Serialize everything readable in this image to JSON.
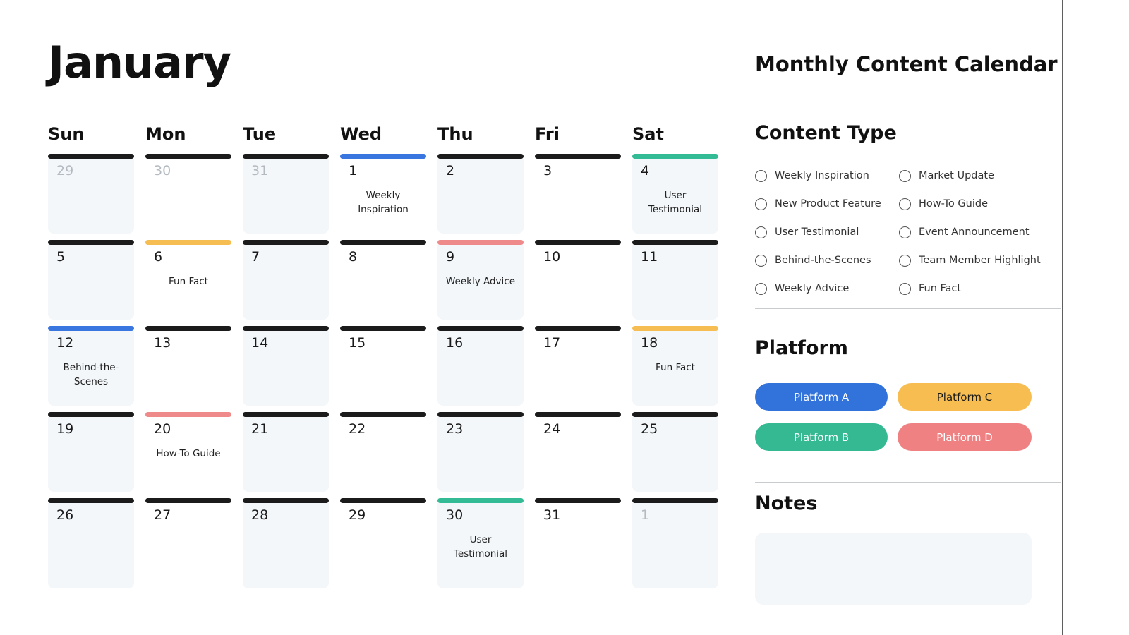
{
  "calendar": {
    "month": "January",
    "day_headers": [
      "Sun",
      "Mon",
      "Tue",
      "Wed",
      "Thu",
      "Fri",
      "Sat"
    ],
    "weeks": [
      [
        {
          "day": "29",
          "muted": true,
          "bar": "default",
          "event": ""
        },
        {
          "day": "30",
          "muted": true,
          "bar": "default",
          "event": ""
        },
        {
          "day": "31",
          "muted": true,
          "bar": "default",
          "event": ""
        },
        {
          "day": "1",
          "muted": false,
          "bar": "blue",
          "event": "Weekly Inspiration"
        },
        {
          "day": "2",
          "muted": false,
          "bar": "default",
          "event": ""
        },
        {
          "day": "3",
          "muted": false,
          "bar": "default",
          "event": ""
        },
        {
          "day": "4",
          "muted": false,
          "bar": "green",
          "event": "User Testimonial"
        }
      ],
      [
        {
          "day": "5",
          "muted": false,
          "bar": "default",
          "event": ""
        },
        {
          "day": "6",
          "muted": false,
          "bar": "yellow",
          "event": "Fun Fact"
        },
        {
          "day": "7",
          "muted": false,
          "bar": "default",
          "event": ""
        },
        {
          "day": "8",
          "muted": false,
          "bar": "default",
          "event": ""
        },
        {
          "day": "9",
          "muted": false,
          "bar": "red",
          "event": "Weekly Advice"
        },
        {
          "day": "10",
          "muted": false,
          "bar": "default",
          "event": ""
        },
        {
          "day": "11",
          "muted": false,
          "bar": "default",
          "event": ""
        }
      ],
      [
        {
          "day": "12",
          "muted": false,
          "bar": "blue",
          "event": "Behind-the-Scenes"
        },
        {
          "day": "13",
          "muted": false,
          "bar": "default",
          "event": ""
        },
        {
          "day": "14",
          "muted": false,
          "bar": "default",
          "event": ""
        },
        {
          "day": "15",
          "muted": false,
          "bar": "default",
          "event": ""
        },
        {
          "day": "16",
          "muted": false,
          "bar": "default",
          "event": ""
        },
        {
          "day": "17",
          "muted": false,
          "bar": "default",
          "event": ""
        },
        {
          "day": "18",
          "muted": false,
          "bar": "yellow",
          "event": "Fun Fact"
        }
      ],
      [
        {
          "day": "19",
          "muted": false,
          "bar": "default",
          "event": ""
        },
        {
          "day": "20",
          "muted": false,
          "bar": "red",
          "event": "How-To Guide"
        },
        {
          "day": "21",
          "muted": false,
          "bar": "default",
          "event": ""
        },
        {
          "day": "22",
          "muted": false,
          "bar": "default",
          "event": ""
        },
        {
          "day": "23",
          "muted": false,
          "bar": "default",
          "event": ""
        },
        {
          "day": "24",
          "muted": false,
          "bar": "default",
          "event": ""
        },
        {
          "day": "25",
          "muted": false,
          "bar": "default",
          "event": ""
        }
      ],
      [
        {
          "day": "26",
          "muted": false,
          "bar": "default",
          "event": ""
        },
        {
          "day": "27",
          "muted": false,
          "bar": "default",
          "event": ""
        },
        {
          "day": "28",
          "muted": false,
          "bar": "default",
          "event": ""
        },
        {
          "day": "29",
          "muted": false,
          "bar": "default",
          "event": ""
        },
        {
          "day": "30",
          "muted": false,
          "bar": "green",
          "event": "User Testimonial"
        },
        {
          "day": "31",
          "muted": false,
          "bar": "default",
          "event": ""
        },
        {
          "day": "1",
          "muted": true,
          "bar": "default",
          "event": ""
        }
      ]
    ]
  },
  "sidebar": {
    "title": "Monthly Content Calendar",
    "content_type": {
      "heading": "Content Type",
      "column1": [
        "Weekly Inspiration",
        "New Product Feature",
        "User Testimonial",
        "Behind-the-Scenes",
        "Weekly Advice"
      ],
      "column2": [
        "Market Update",
        "How-To Guide",
        "Event Announcement",
        "Team Member Highlight",
        "Fun Fact"
      ]
    },
    "platform": {
      "heading": "Platform",
      "items": [
        {
          "label": "Platform A",
          "color": "#3273DB",
          "text_color": "#FFFFFF"
        },
        {
          "label": "Platform C",
          "color": "#F7BD51",
          "text_color": "#1A1A1A"
        },
        {
          "label": "Platform B",
          "color": "#35B993",
          "text_color": "#FFFFFF"
        },
        {
          "label": "Platform D",
          "color": "#EF8183",
          "text_color": "#FFFFFF"
        }
      ]
    },
    "notes": {
      "heading": "Notes",
      "value": ""
    }
  },
  "colors": {
    "bars": {
      "default": "#1B1B1B",
      "blue": "#3A76E0",
      "green": "#33BB95",
      "yellow": "#F6BD53",
      "red": "#EF8A8A"
    },
    "cell_stripe_bg": "#F3F7FA",
    "muted_day_text": "#B4BAC1"
  }
}
